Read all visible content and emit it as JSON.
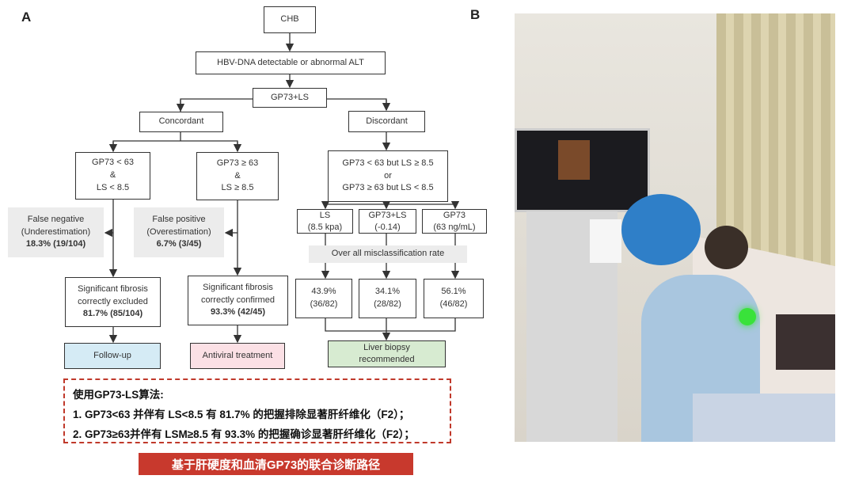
{
  "panels": {
    "a": "A",
    "b": "B"
  },
  "flow": {
    "chb": "CHB",
    "hbv": "HBV-DNA detectable or abnormal ALT",
    "gp73ls": "GP73+LS",
    "concordant": "Concordant",
    "discordant": "Discordant",
    "low": [
      "GP73 < 63",
      "&",
      "LS < 8.5"
    ],
    "high": [
      "GP73 ≥ 63",
      "&",
      "LS ≥ 8.5"
    ],
    "disc_cond": [
      "GP73 < 63 but LS ≥ 8.5",
      "or",
      "GP73 ≥ 63 but LS < 8.5"
    ],
    "false_neg": [
      "False negative",
      "(Underestimation)",
      "18.3% (19/104)"
    ],
    "false_pos": [
      "False positive",
      "(Overestimation)",
      "6.7% (3/45)"
    ],
    "excluded": [
      "Significant fibrosis",
      "correctly excluded",
      "81.7% (85/104)"
    ],
    "confirmed": [
      "Significant fibrosis",
      "correctly confirmed",
      "93.3% (42/45)"
    ],
    "methods": [
      {
        "name": "LS",
        "cut": "(8.5 kpa)",
        "rate": "43.9%",
        "frac": "(36/82)"
      },
      {
        "name": "GP73+LS",
        "cut": "(-0.14)",
        "rate": "34.1%",
        "frac": "(28/82)"
      },
      {
        "name": "GP73",
        "cut": "(63 ng/mL)",
        "rate": "56.1%",
        "frac": "(46/82)"
      }
    ],
    "misclass": "Over all misclassification rate",
    "follow_up": "Follow-up",
    "antiviral": "Antiviral treatment",
    "biopsy": [
      "Liver biopsy",
      "recommended"
    ]
  },
  "note": {
    "title": "使用GP73-LS算法:",
    "line1": "1. GP73<63 并伴有 LS<8.5 有 81.7% 的把握排除显著肝纤维化（F2）；",
    "line2": "2.  GP73≥63并伴有 LSM≥8.5 有 93.3% 的把握确诊显著肝纤维化（F2）；"
  },
  "banner": "基于肝硬度和血清GP73的联合诊断路径",
  "colors": {
    "follow_up": "#d5ebf5",
    "antiviral": "#fbe0e5",
    "biopsy": "#d7ebd1",
    "red": "#c8392d",
    "gray": "#ececec"
  }
}
